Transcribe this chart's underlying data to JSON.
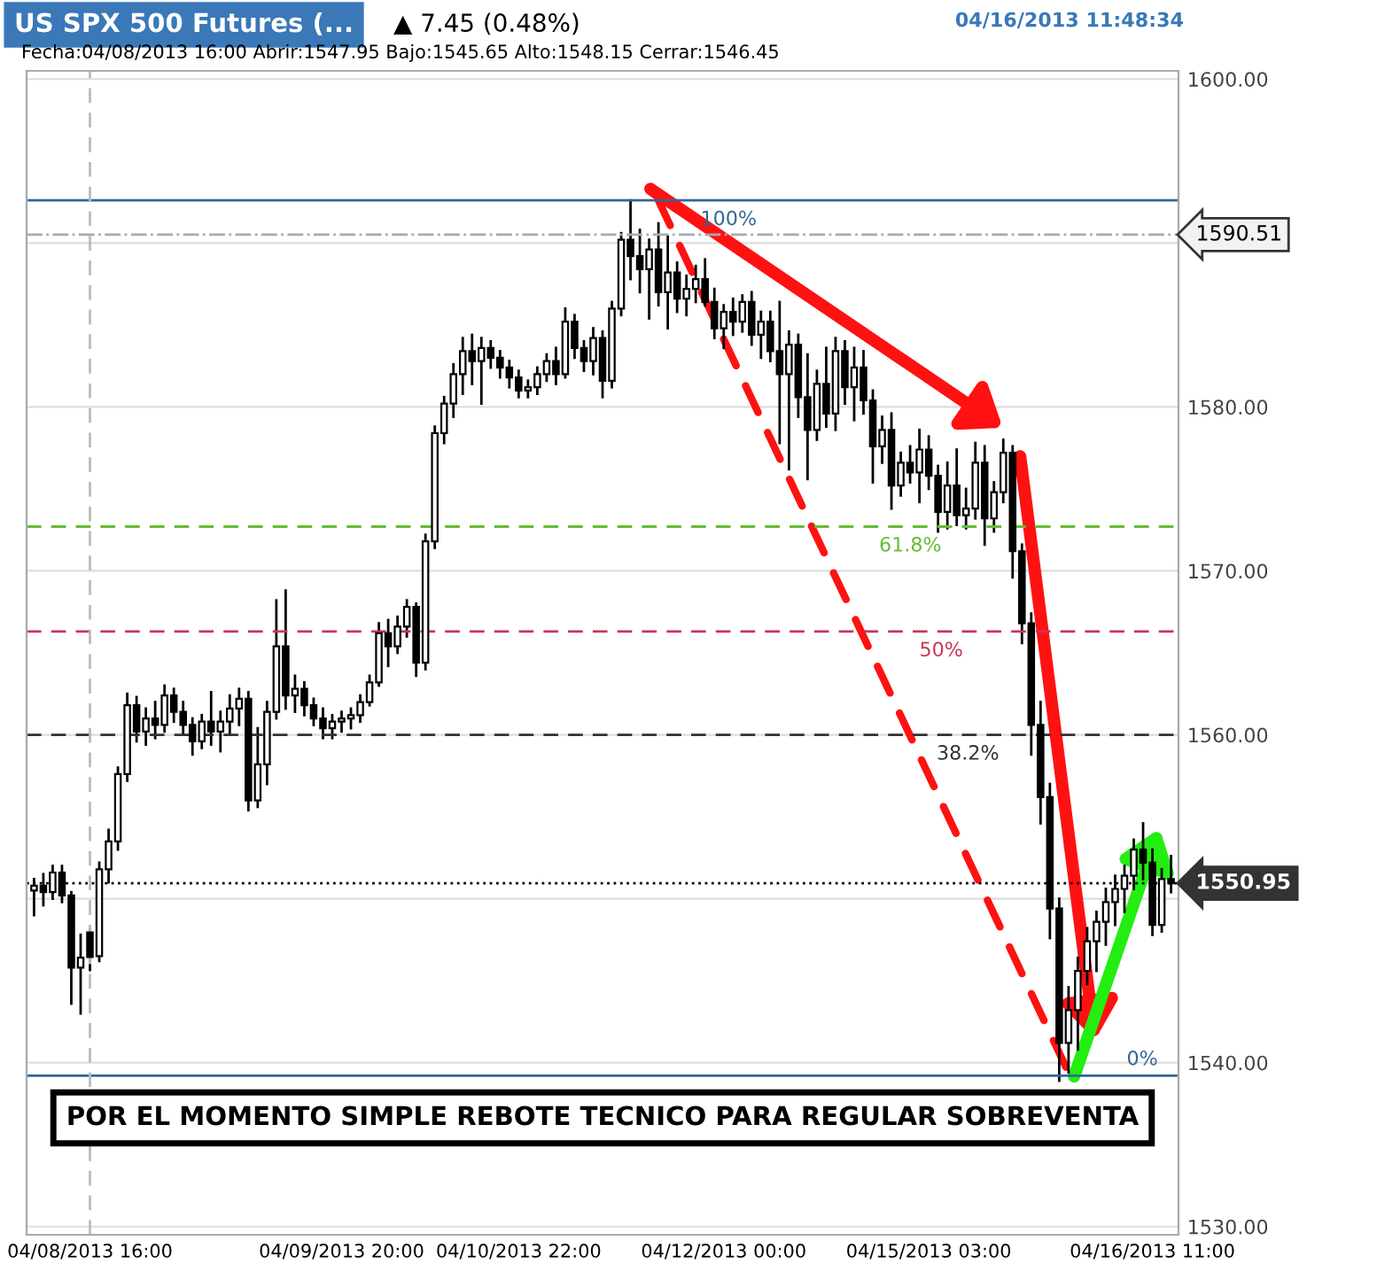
{
  "chart_data": {
    "type": "candlestick",
    "title": "US SPX 500 Futures (...",
    "subtitle": "Fecha:04/08/2013 16:00 Abrir:1547.95 Bajo:1545.65 Alto:1548.15 Cerrar:1546.45",
    "annotations": [
      "▲ 7.45 (0.48%)",
      "04/16/2013 11:48:34",
      "POR EL MOMENTO SIMPLE REBOTE TECNICO PARA REGULAR SOBREVENTA",
      {
        "text": "100%",
        "y": 1592.6
      },
      {
        "text": "61.8%",
        "y": 1572.7
      },
      {
        "text": "50%",
        "y": 1566.3
      },
      {
        "text": "38.2%",
        "y": 1560.0
      },
      {
        "text": "0%",
        "y": 1539.2
      }
    ],
    "categories": [
      null,
      null,
      null,
      null,
      null,
      null,
      "04/08/2013 16:00",
      null,
      null,
      null,
      null,
      null,
      null,
      null,
      null,
      null,
      null,
      null,
      null,
      null,
      null,
      null,
      null,
      null,
      null,
      null,
      null,
      null,
      null,
      null,
      null,
      null,
      null,
      "04/09/2013 20:00",
      null,
      null,
      null,
      null,
      null,
      null,
      null,
      null,
      null,
      null,
      null,
      null,
      null,
      null,
      null,
      null,
      null,
      null,
      "04/10/2013 22:00",
      null,
      null,
      null,
      null,
      null,
      null,
      null,
      null,
      null,
      null,
      null,
      null,
      null,
      null,
      null,
      null,
      null,
      null,
      null,
      null,
      null,
      "04/12/2013 00:00",
      null,
      null,
      null,
      null,
      null,
      null,
      null,
      null,
      null,
      null,
      null,
      null,
      null,
      null,
      null,
      null,
      null,
      null,
      null,
      null,
      null,
      "04/15/2013 03:00",
      null,
      null,
      null,
      null,
      null,
      null,
      null,
      null,
      null,
      null,
      null,
      null,
      null,
      null,
      null,
      null,
      null,
      null,
      null,
      null,
      null,
      null,
      null,
      "04/16/2013 11:00",
      null,
      null
    ],
    "ohlc": [
      [
        1550.5,
        1551.2,
        1549.0,
        1550.8
      ],
      [
        1550.8,
        1551.5,
        1549.6,
        1550.4
      ],
      [
        1550.4,
        1552.0,
        1550.0,
        1551.6
      ],
      [
        1551.6,
        1552.0,
        1549.8,
        1550.2
      ],
      [
        1550.2,
        1550.4,
        1543.6,
        1545.8
      ],
      [
        1545.8,
        1547.8,
        1543.0,
        1546.4
      ],
      [
        1547.95,
        1548.15,
        1545.65,
        1546.45
      ],
      [
        1546.5,
        1552.2,
        1546.2,
        1551.8
      ],
      [
        1551.8,
        1554.2,
        1551.0,
        1553.5
      ],
      [
        1553.5,
        1558.0,
        1553.0,
        1557.6
      ],
      [
        1557.6,
        1562.5,
        1557.2,
        1561.8
      ],
      [
        1561.8,
        1562.3,
        1559.6,
        1560.2
      ],
      [
        1560.2,
        1561.6,
        1559.4,
        1561.0
      ],
      [
        1561.0,
        1562.0,
        1559.8,
        1560.6
      ],
      [
        1560.6,
        1563.0,
        1560.2,
        1562.4
      ],
      [
        1562.4,
        1562.8,
        1560.8,
        1561.4
      ],
      [
        1561.4,
        1562.0,
        1560.0,
        1560.6
      ],
      [
        1560.6,
        1561.0,
        1558.8,
        1559.6
      ],
      [
        1559.6,
        1561.2,
        1559.2,
        1560.8
      ],
      [
        1560.8,
        1562.6,
        1559.4,
        1560.2
      ],
      [
        1560.2,
        1561.4,
        1559.0,
        1560.8
      ],
      [
        1560.8,
        1562.4,
        1560.0,
        1561.6
      ],
      [
        1561.6,
        1562.8,
        1560.6,
        1562.2
      ],
      [
        1562.2,
        1562.6,
        1555.4,
        1556.0
      ],
      [
        1556.0,
        1560.4,
        1555.6,
        1558.2
      ],
      [
        1558.2,
        1562.0,
        1557.0,
        1561.4
      ],
      [
        1561.4,
        1568.2,
        1561.0,
        1565.4
      ],
      [
        1565.4,
        1568.8,
        1561.6,
        1562.4
      ],
      [
        1562.4,
        1563.6,
        1561.4,
        1562.8
      ],
      [
        1562.8,
        1563.2,
        1561.2,
        1561.8
      ],
      [
        1561.8,
        1562.2,
        1560.6,
        1561.0
      ],
      [
        1561.0,
        1561.6,
        1559.8,
        1560.4
      ],
      [
        1560.4,
        1561.2,
        1559.8,
        1560.8
      ],
      [
        1560.8,
        1561.4,
        1560.2,
        1561.0
      ],
      [
        1561.0,
        1561.6,
        1560.4,
        1561.2
      ],
      [
        1561.2,
        1562.4,
        1560.8,
        1562.0
      ],
      [
        1562.0,
        1563.6,
        1561.8,
        1563.2
      ],
      [
        1563.2,
        1566.8,
        1563.0,
        1566.2
      ],
      [
        1566.2,
        1567.0,
        1564.2,
        1565.4
      ],
      [
        1565.4,
        1567.2,
        1565.0,
        1566.6
      ],
      [
        1566.6,
        1568.2,
        1566.0,
        1567.8
      ],
      [
        1567.8,
        1568.0,
        1563.6,
        1564.4
      ],
      [
        1564.4,
        1572.2,
        1564.0,
        1571.8
      ],
      [
        1571.8,
        1578.8,
        1571.4,
        1578.4
      ],
      [
        1578.4,
        1580.6,
        1577.8,
        1580.2
      ],
      [
        1580.2,
        1582.6,
        1579.4,
        1582.0
      ],
      [
        1582.0,
        1584.2,
        1580.8,
        1583.4
      ],
      [
        1583.4,
        1584.4,
        1581.4,
        1582.8
      ],
      [
        1582.8,
        1584.2,
        1580.2,
        1583.6
      ],
      [
        1583.6,
        1584.0,
        1582.4,
        1583.0
      ],
      [
        1583.0,
        1583.4,
        1581.8,
        1582.4
      ],
      [
        1582.4,
        1582.8,
        1581.2,
        1581.8
      ],
      [
        1581.8,
        1582.2,
        1580.6,
        1581.0
      ],
      [
        1581.0,
        1581.6,
        1580.6,
        1581.2
      ],
      [
        1581.2,
        1582.4,
        1580.8,
        1582.0
      ],
      [
        1582.0,
        1583.2,
        1581.6,
        1582.8
      ],
      [
        1582.8,
        1583.6,
        1581.4,
        1582.0
      ],
      [
        1582.0,
        1586.0,
        1581.8,
        1585.2
      ],
      [
        1585.2,
        1585.6,
        1583.0,
        1583.6
      ],
      [
        1583.6,
        1584.0,
        1582.2,
        1582.8
      ],
      [
        1582.8,
        1584.8,
        1582.0,
        1584.2
      ],
      [
        1584.2,
        1584.6,
        1580.6,
        1581.6
      ],
      [
        1581.6,
        1586.4,
        1581.2,
        1586.0
      ],
      [
        1586.0,
        1590.6,
        1585.6,
        1590.2
      ],
      [
        1590.2,
        1592.6,
        1587.8,
        1589.2
      ],
      [
        1589.2,
        1590.8,
        1587.0,
        1588.4
      ],
      [
        1588.4,
        1590.2,
        1585.4,
        1589.6
      ],
      [
        1589.6,
        1591.2,
        1586.2,
        1587.0
      ],
      [
        1587.0,
        1590.4,
        1584.8,
        1588.2
      ],
      [
        1588.2,
        1588.8,
        1585.8,
        1586.6
      ],
      [
        1586.6,
        1588.0,
        1585.6,
        1587.2
      ],
      [
        1587.2,
        1588.6,
        1586.4,
        1587.8
      ],
      [
        1587.8,
        1589.0,
        1586.2,
        1586.4
      ],
      [
        1586.4,
        1587.2,
        1584.2,
        1584.8
      ],
      [
        1584.8,
        1586.2,
        1583.6,
        1585.8
      ],
      [
        1585.8,
        1586.6,
        1584.4,
        1585.2
      ],
      [
        1585.2,
        1586.8,
        1584.6,
        1586.4
      ],
      [
        1586.4,
        1587.0,
        1583.8,
        1584.4
      ],
      [
        1584.4,
        1585.8,
        1583.0,
        1585.2
      ],
      [
        1585.2,
        1585.8,
        1582.8,
        1583.4
      ],
      [
        1583.4,
        1586.4,
        1577.8,
        1582.0
      ],
      [
        1582.0,
        1584.6,
        1576.2,
        1583.8
      ],
      [
        1583.8,
        1584.4,
        1579.4,
        1580.6
      ],
      [
        1580.6,
        1583.2,
        1575.6,
        1578.6
      ],
      [
        1578.6,
        1582.2,
        1578.0,
        1581.4
      ],
      [
        1581.4,
        1583.6,
        1578.8,
        1579.6
      ],
      [
        1579.6,
        1584.2,
        1578.6,
        1583.4
      ],
      [
        1583.4,
        1584.0,
        1580.2,
        1581.2
      ],
      [
        1581.2,
        1583.6,
        1579.2,
        1582.4
      ],
      [
        1582.4,
        1583.4,
        1579.6,
        1580.4
      ],
      [
        1580.4,
        1581.0,
        1575.4,
        1577.6
      ],
      [
        1577.6,
        1579.4,
        1576.6,
        1578.6
      ],
      [
        1578.6,
        1579.6,
        1573.8,
        1575.2
      ],
      [
        1575.2,
        1577.2,
        1574.6,
        1576.6
      ],
      [
        1576.6,
        1577.6,
        1575.4,
        1576.0
      ],
      [
        1576.0,
        1578.6,
        1574.2,
        1577.4
      ],
      [
        1577.4,
        1578.2,
        1575.0,
        1575.8
      ],
      [
        1575.8,
        1576.4,
        1572.4,
        1573.6
      ],
      [
        1573.6,
        1576.6,
        1572.6,
        1575.2
      ],
      [
        1575.2,
        1577.4,
        1572.8,
        1573.4
      ],
      [
        1573.4,
        1575.0,
        1572.6,
        1573.8
      ],
      [
        1573.8,
        1577.8,
        1573.2,
        1576.6
      ],
      [
        1576.6,
        1577.6,
        1571.6,
        1573.2
      ],
      [
        1573.2,
        1575.4,
        1572.4,
        1574.8
      ],
      [
        1574.8,
        1578.0,
        1574.2,
        1577.2
      ],
      [
        1577.2,
        1577.6,
        1569.6,
        1571.2
      ],
      [
        1571.2,
        1571.6,
        1565.6,
        1566.8
      ],
      [
        1566.8,
        1567.4,
        1558.8,
        1560.6
      ],
      [
        1560.6,
        1562.0,
        1554.6,
        1556.2
      ],
      [
        1556.2,
        1557.0,
        1547.6,
        1549.4
      ],
      [
        1549.4,
        1550.0,
        1538.9,
        1541.2
      ],
      [
        1541.2,
        1544.6,
        1539.4,
        1543.2
      ],
      [
        1543.2,
        1546.4,
        1540.8,
        1545.6
      ],
      [
        1545.6,
        1548.2,
        1544.8,
        1547.4
      ],
      [
        1547.4,
        1549.2,
        1545.6,
        1548.6
      ],
      [
        1548.6,
        1550.6,
        1547.2,
        1549.8
      ],
      [
        1549.8,
        1551.4,
        1548.4,
        1550.6
      ],
      [
        1550.6,
        1552.0,
        1549.2,
        1551.4
      ],
      [
        1551.4,
        1553.6,
        1550.6,
        1553.0
      ],
      [
        1553.0,
        1554.6,
        1551.2,
        1552.2
      ],
      [
        1552.2,
        1553.0,
        1547.8,
        1548.4
      ],
      [
        1548.4,
        1551.8,
        1548.0,
        1551.2
      ],
      [
        1551.2,
        1552.6,
        1550.4,
        1550.95
      ]
    ],
    "color": "#000000",
    "ylim": [
      1529.5,
      1600.5
    ],
    "yticks": [
      {
        "value": 1530,
        "label": "1530.00"
      },
      {
        "value": 1540,
        "label": "1540.00"
      },
      {
        "value": 1550,
        "label": null
      },
      {
        "value": 1560,
        "label": "1560.00"
      },
      {
        "value": 1570,
        "label": "1570.00"
      },
      {
        "value": 1580,
        "label": "1580.00"
      },
      {
        "value": 1590,
        "label": null
      },
      {
        "value": 1600,
        "label": "1600.00"
      }
    ],
    "grid": "y",
    "ref_lines": [
      {
        "axis": "y",
        "value": 1590.51,
        "label": "1590.51",
        "color": "#aaaaaa",
        "line_style": "dashdot"
      },
      {
        "axis": "y",
        "value": 1550.95,
        "label": "1550.95",
        "color": "#000000",
        "line_style": "dotted"
      },
      {
        "axis": "y",
        "value": 1592.6,
        "color": "#336699",
        "line_style": "solid"
      },
      {
        "axis": "y",
        "value": 1572.7,
        "color": "#66bb33",
        "line_style": "dashed"
      },
      {
        "axis": "y",
        "value": 1566.3,
        "color": "#cc3355",
        "line_style": "dashed"
      },
      {
        "axis": "y",
        "value": 1560.0,
        "color": "#333333",
        "line_style": "dashed"
      },
      {
        "axis": "y",
        "value": 1539.2,
        "color": "#336699",
        "line_style": "solid"
      },
      {
        "axis": "x",
        "value": "04/08/2013 16:00",
        "color": "#bbbbbb",
        "line_style": "dashed"
      }
    ]
  }
}
